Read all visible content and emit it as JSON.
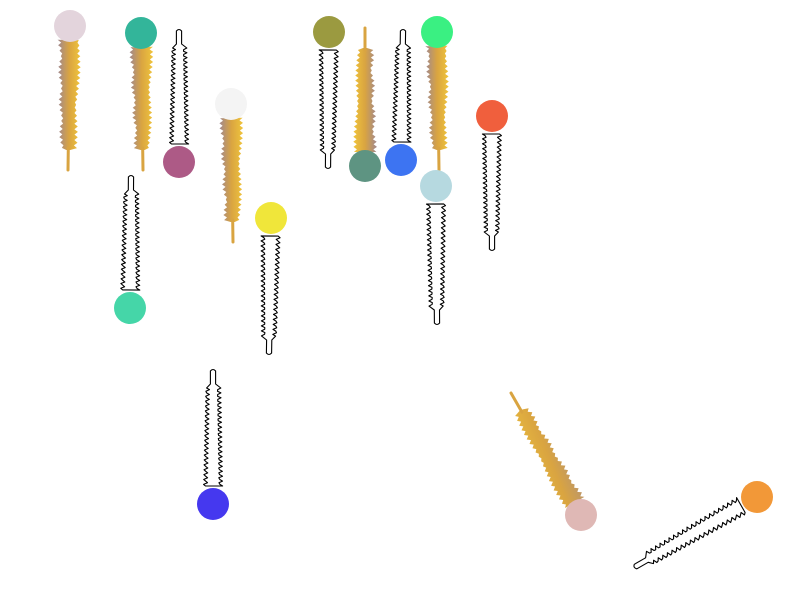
{
  "title": "",
  "colors": {
    "background": "#ffffff",
    "outline": "#000000",
    "tail_gold": "#d9a441",
    "tail_yellow": "#f0c53c",
    "tail_mauve": "#a08890"
  },
  "molecules": [
    {
      "id": "m1",
      "style": "filled",
      "head_color": "#e3d4dc"
    },
    {
      "id": "m2",
      "style": "filled",
      "head_color": "#33b59a"
    },
    {
      "id": "m3",
      "style": "outline",
      "head_color": "#ad5a86"
    },
    {
      "id": "m4",
      "style": "outline",
      "head_color": "#45d6a8"
    },
    {
      "id": "m5",
      "style": "filled",
      "head_color": "#f4f4f4"
    },
    {
      "id": "m6",
      "style": "outline",
      "head_color": "#f0e63a"
    },
    {
      "id": "m7",
      "style": "outline",
      "head_color": "#9b9a40"
    },
    {
      "id": "m8",
      "style": "filled",
      "head_color": "#5e9482"
    },
    {
      "id": "m9",
      "style": "outline",
      "head_color": "#3d74f2"
    },
    {
      "id": "m10",
      "style": "filled",
      "head_color": "#3af082"
    },
    {
      "id": "m11",
      "style": "outline",
      "head_color": "#b6d9e0"
    },
    {
      "id": "m12",
      "style": "outline",
      "head_color": "#f05f3d"
    },
    {
      "id": "m13",
      "style": "outline",
      "head_color": "#4538ef"
    },
    {
      "id": "m14",
      "style": "filled",
      "head_color": "#dfb8b5"
    },
    {
      "id": "m15",
      "style": "outline",
      "head_color": "#f29838"
    }
  ]
}
